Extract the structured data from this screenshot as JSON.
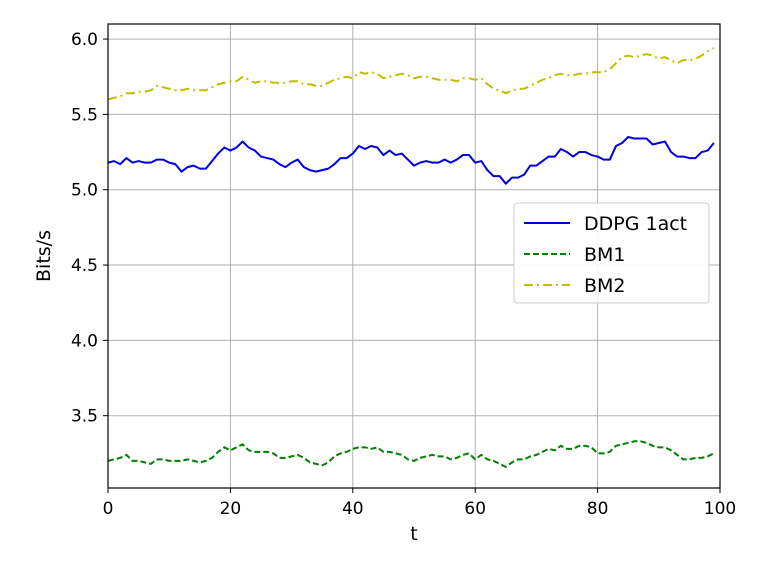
{
  "chart_data": {
    "type": "line",
    "xlabel": "t",
    "ylabel": "Bits/s",
    "xlim": [
      0,
      100
    ],
    "ylim": [
      3.02,
      6.1
    ],
    "xticks": [
      0,
      20,
      40,
      60,
      80,
      100
    ],
    "yticks": [
      3.5,
      4.0,
      4.5,
      5.0,
      5.5,
      6.0
    ],
    "xtick_labels": [
      "0",
      "20",
      "40",
      "60",
      "80",
      "100"
    ],
    "ytick_labels": [
      "3.5",
      "4.0",
      "4.5",
      "5.0",
      "5.5",
      "6.0"
    ],
    "grid": true,
    "legend_position": "center-right",
    "x": [
      0,
      1,
      2,
      3,
      4,
      5,
      6,
      7,
      8,
      9,
      10,
      11,
      12,
      13,
      14,
      15,
      16,
      17,
      18,
      19,
      20,
      21,
      22,
      23,
      24,
      25,
      26,
      27,
      28,
      29,
      30,
      31,
      32,
      33,
      34,
      35,
      36,
      37,
      38,
      39,
      40,
      41,
      42,
      43,
      44,
      45,
      46,
      47,
      48,
      49,
      50,
      51,
      52,
      53,
      54,
      55,
      56,
      57,
      58,
      59,
      60,
      61,
      62,
      63,
      64,
      65,
      66,
      67,
      68,
      69,
      70,
      71,
      72,
      73,
      74,
      75,
      76,
      77,
      78,
      79,
      80,
      81,
      82,
      83,
      84,
      85,
      86,
      87,
      88,
      89,
      90,
      91,
      92,
      93,
      94,
      95,
      96,
      97,
      98,
      99
    ],
    "series": [
      {
        "name": "DDPG 1act",
        "color": "#0000dd",
        "style": "solid",
        "values": [
          5.18,
          5.19,
          5.17,
          5.21,
          5.18,
          5.19,
          5.18,
          5.18,
          5.2,
          5.2,
          5.18,
          5.17,
          5.12,
          5.15,
          5.16,
          5.14,
          5.14,
          5.19,
          5.24,
          5.28,
          5.26,
          5.28,
          5.32,
          5.28,
          5.26,
          5.22,
          5.21,
          5.2,
          5.17,
          5.15,
          5.18,
          5.2,
          5.15,
          5.13,
          5.12,
          5.13,
          5.14,
          5.17,
          5.21,
          5.21,
          5.24,
          5.29,
          5.27,
          5.29,
          5.28,
          5.23,
          5.26,
          5.23,
          5.24,
          5.2,
          5.16,
          5.18,
          5.19,
          5.18,
          5.18,
          5.2,
          5.18,
          5.2,
          5.23,
          5.23,
          5.18,
          5.19,
          5.13,
          5.09,
          5.09,
          5.04,
          5.08,
          5.08,
          5.1,
          5.16,
          5.16,
          5.19,
          5.22,
          5.22,
          5.27,
          5.25,
          5.22,
          5.25,
          5.25,
          5.23,
          5.22,
          5.2,
          5.2,
          5.29,
          5.31,
          5.35,
          5.34,
          5.34,
          5.34,
          5.3,
          5.31,
          5.32,
          5.25,
          5.22,
          5.22,
          5.21,
          5.21,
          5.25,
          5.26,
          5.31
        ]
      },
      {
        "name": "BM1",
        "color": "#007f00",
        "style": "dashed",
        "values": [
          3.2,
          3.21,
          3.22,
          3.24,
          3.2,
          3.2,
          3.19,
          3.18,
          3.21,
          3.21,
          3.2,
          3.2,
          3.2,
          3.21,
          3.2,
          3.19,
          3.2,
          3.22,
          3.26,
          3.29,
          3.27,
          3.29,
          3.31,
          3.27,
          3.26,
          3.26,
          3.26,
          3.25,
          3.22,
          3.22,
          3.23,
          3.24,
          3.22,
          3.19,
          3.18,
          3.17,
          3.19,
          3.23,
          3.25,
          3.26,
          3.28,
          3.29,
          3.29,
          3.28,
          3.29,
          3.26,
          3.26,
          3.25,
          3.24,
          3.21,
          3.2,
          3.22,
          3.23,
          3.24,
          3.23,
          3.23,
          3.21,
          3.22,
          3.24,
          3.25,
          3.21,
          3.24,
          3.21,
          3.2,
          3.18,
          3.16,
          3.19,
          3.21,
          3.21,
          3.23,
          3.24,
          3.26,
          3.28,
          3.27,
          3.3,
          3.28,
          3.28,
          3.3,
          3.3,
          3.29,
          3.25,
          3.25,
          3.26,
          3.3,
          3.31,
          3.32,
          3.33,
          3.33,
          3.32,
          3.3,
          3.29,
          3.29,
          3.27,
          3.24,
          3.21,
          3.21,
          3.22,
          3.22,
          3.23,
          3.25
        ]
      },
      {
        "name": "BM2",
        "color": "#bfbf00",
        "style": "dashdot",
        "values": [
          5.6,
          5.61,
          5.62,
          5.64,
          5.64,
          5.65,
          5.65,
          5.66,
          5.69,
          5.68,
          5.67,
          5.66,
          5.66,
          5.67,
          5.66,
          5.66,
          5.66,
          5.68,
          5.7,
          5.71,
          5.72,
          5.72,
          5.75,
          5.73,
          5.71,
          5.72,
          5.72,
          5.71,
          5.71,
          5.71,
          5.72,
          5.72,
          5.7,
          5.7,
          5.69,
          5.69,
          5.71,
          5.73,
          5.74,
          5.75,
          5.74,
          5.78,
          5.77,
          5.78,
          5.77,
          5.74,
          5.75,
          5.76,
          5.77,
          5.76,
          5.74,
          5.75,
          5.75,
          5.74,
          5.73,
          5.73,
          5.73,
          5.72,
          5.74,
          5.74,
          5.73,
          5.74,
          5.7,
          5.67,
          5.66,
          5.64,
          5.66,
          5.67,
          5.67,
          5.69,
          5.71,
          5.73,
          5.74,
          5.76,
          5.77,
          5.76,
          5.76,
          5.77,
          5.77,
          5.78,
          5.78,
          5.78,
          5.8,
          5.84,
          5.88,
          5.89,
          5.88,
          5.89,
          5.9,
          5.89,
          5.87,
          5.88,
          5.86,
          5.84,
          5.86,
          5.86,
          5.87,
          5.89,
          5.92,
          5.94
        ]
      }
    ]
  }
}
